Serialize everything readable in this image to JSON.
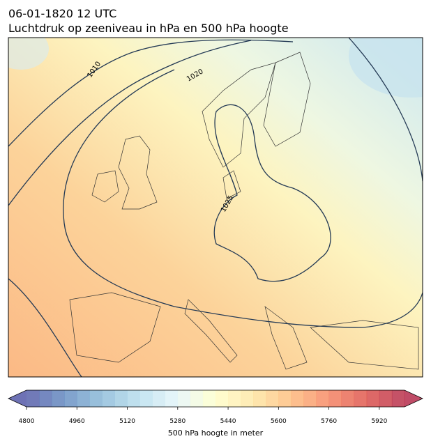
{
  "header": {
    "title": "06-01-1820 12 UTC",
    "subtitle": "Luchtdruk op zeeniveau in hPa en 500 hPa hoogte"
  },
  "isobars": [
    {
      "label": "1010"
    },
    {
      "label": "1020"
    },
    {
      "label": "1025"
    }
  ],
  "colorbar": {
    "label": "500 hPa hoogte in meter",
    "lim": [
      4800,
      6000
    ],
    "step": 40,
    "ticks": [
      4800,
      4960,
      5120,
      5280,
      5440,
      5600,
      5760,
      5920
    ]
  }
}
